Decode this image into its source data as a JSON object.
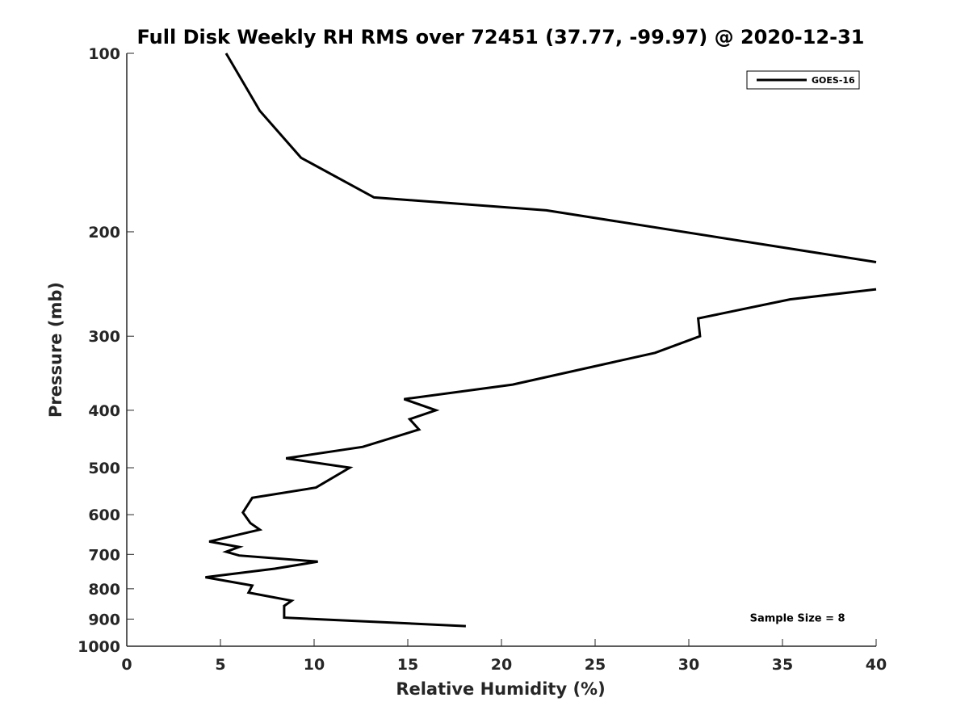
{
  "chart_data": {
    "type": "line",
    "title": "Full Disk Weekly RH RMS over 72451 (37.77, -99.97) @ 2020-12-31",
    "xlabel": "Relative Humidity (%)",
    "ylabel": "Pressure (mb)",
    "xlim": [
      0,
      40
    ],
    "ylim": [
      100,
      1000
    ],
    "y_scale": "log",
    "y_reversed": true,
    "grid": false,
    "legend_placement": "top-right",
    "x_ticks": [
      0,
      5,
      10,
      15,
      20,
      25,
      30,
      35,
      40
    ],
    "x_tick_labels": [
      "0",
      "5",
      "10",
      "15",
      "20",
      "25",
      "30",
      "35",
      "40"
    ],
    "y_ticks": [
      100,
      200,
      300,
      400,
      500,
      600,
      700,
      800,
      900,
      1000
    ],
    "y_tick_labels": [
      "100",
      "200",
      "300",
      "400",
      "500",
      "600",
      "700",
      "800",
      "900",
      "1000"
    ],
    "series": [
      {
        "name": "GOES-16",
        "color": "#000000",
        "segments": [
          [
            {
              "x": 5.3,
              "y": 100
            },
            {
              "x": 7.1,
              "y": 125
            },
            {
              "x": 9.3,
              "y": 150
            },
            {
              "x": 13.2,
              "y": 175
            },
            {
              "x": 22.4,
              "y": 184
            },
            {
              "x": 40.0,
              "y": 225
            }
          ],
          [
            {
              "x": 40.0,
              "y": 250
            },
            {
              "x": 35.4,
              "y": 260
            },
            {
              "x": 30.5,
              "y": 280
            },
            {
              "x": 30.6,
              "y": 300
            },
            {
              "x": 28.2,
              "y": 320
            },
            {
              "x": 20.6,
              "y": 362
            },
            {
              "x": 14.8,
              "y": 383
            },
            {
              "x": 16.5,
              "y": 400
            },
            {
              "x": 15.1,
              "y": 414
            },
            {
              "x": 15.6,
              "y": 431
            },
            {
              "x": 12.6,
              "y": 461
            },
            {
              "x": 8.5,
              "y": 482
            },
            {
              "x": 11.9,
              "y": 500
            },
            {
              "x": 10.1,
              "y": 540
            },
            {
              "x": 6.7,
              "y": 562
            },
            {
              "x": 6.2,
              "y": 595
            },
            {
              "x": 6.6,
              "y": 620
            },
            {
              "x": 7.1,
              "y": 636
            },
            {
              "x": 4.4,
              "y": 666
            },
            {
              "x": 6.0,
              "y": 680
            },
            {
              "x": 5.3,
              "y": 693
            },
            {
              "x": 6.0,
              "y": 703
            },
            {
              "x": 10.2,
              "y": 720
            },
            {
              "x": 7.9,
              "y": 740
            },
            {
              "x": 4.2,
              "y": 765
            },
            {
              "x": 6.7,
              "y": 790
            },
            {
              "x": 6.5,
              "y": 812
            },
            {
              "x": 8.8,
              "y": 838
            },
            {
              "x": 8.4,
              "y": 855
            },
            {
              "x": 8.4,
              "y": 895
            },
            {
              "x": 18.1,
              "y": 925
            }
          ]
        ]
      }
    ],
    "annotations": [
      {
        "text": "Sample Size = 8",
        "x": 35.8,
        "y": 895
      }
    ]
  }
}
